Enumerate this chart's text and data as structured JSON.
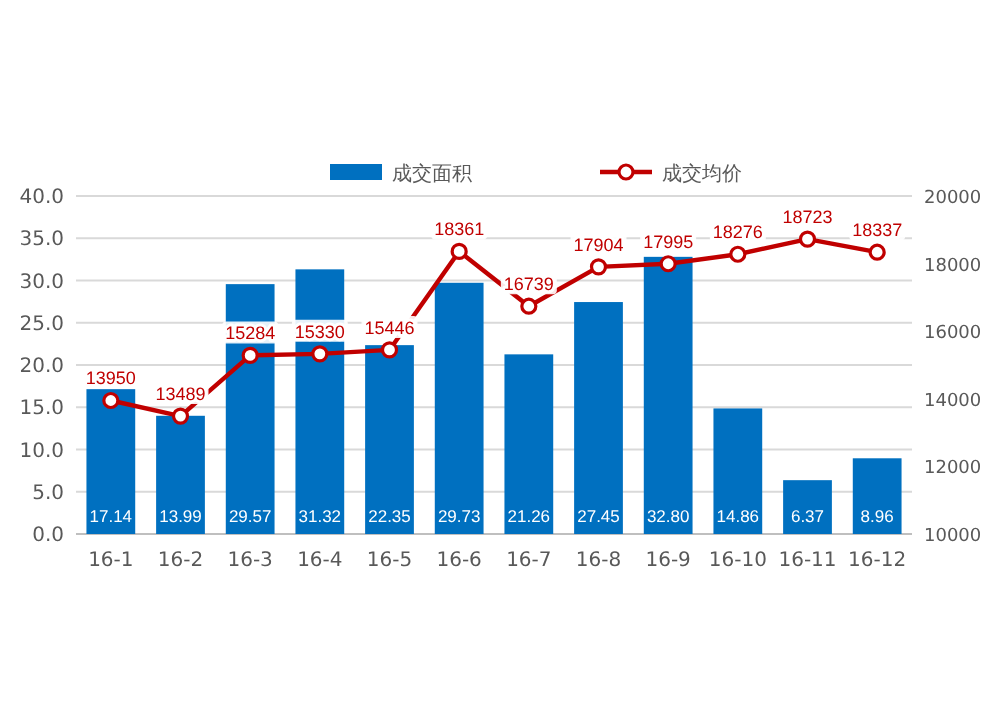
{
  "chart_data": {
    "type": "bar",
    "categories": [
      "16-1",
      "16-2",
      "16-3",
      "16-4",
      "16-5",
      "16-6",
      "16-7",
      "16-8",
      "16-9",
      "16-10",
      "16-11",
      "16-12"
    ],
    "series": [
      {
        "name": "成交面积",
        "color": "#0070c0",
        "values": [
          17.14,
          13.99,
          29.57,
          31.32,
          22.35,
          29.73,
          21.26,
          27.45,
          32.8,
          14.86,
          6.37,
          8.96
        ],
        "value_labels": [
          "17.14",
          "13.99",
          "29.57",
          "31.32",
          "22.35",
          "29.73",
          "21.26",
          "27.45",
          "32.80",
          "14.86",
          "6.37",
          "8.96"
        ]
      },
      {
        "name": "成交均价",
        "type": "line",
        "axis": "y2",
        "color": "#c00000",
        "marker": "circle",
        "values": [
          13950,
          13489,
          15284,
          15330,
          15446,
          18361,
          16739,
          17904,
          17995,
          18276,
          18723,
          18337
        ]
      }
    ],
    "ylim": [
      0,
      40
    ],
    "yticks": [
      {
        "value": 0,
        "label": "0.0"
      },
      {
        "value": 5,
        "label": "5.0"
      },
      {
        "value": 10,
        "label": "10.0"
      },
      {
        "value": 15,
        "label": "15.0"
      },
      {
        "value": 20,
        "label": "20.0"
      },
      {
        "value": 25,
        "label": "25.0"
      },
      {
        "value": 30,
        "label": "30.0"
      },
      {
        "value": 35,
        "label": "35.0"
      },
      {
        "value": 40,
        "label": "40.0"
      }
    ],
    "y2lim": [
      10000,
      20000
    ],
    "y2ticks": [
      10000,
      12000,
      14000,
      16000,
      18000,
      20000
    ],
    "grid": "y",
    "legend": "top",
    "data_labels": true
  }
}
